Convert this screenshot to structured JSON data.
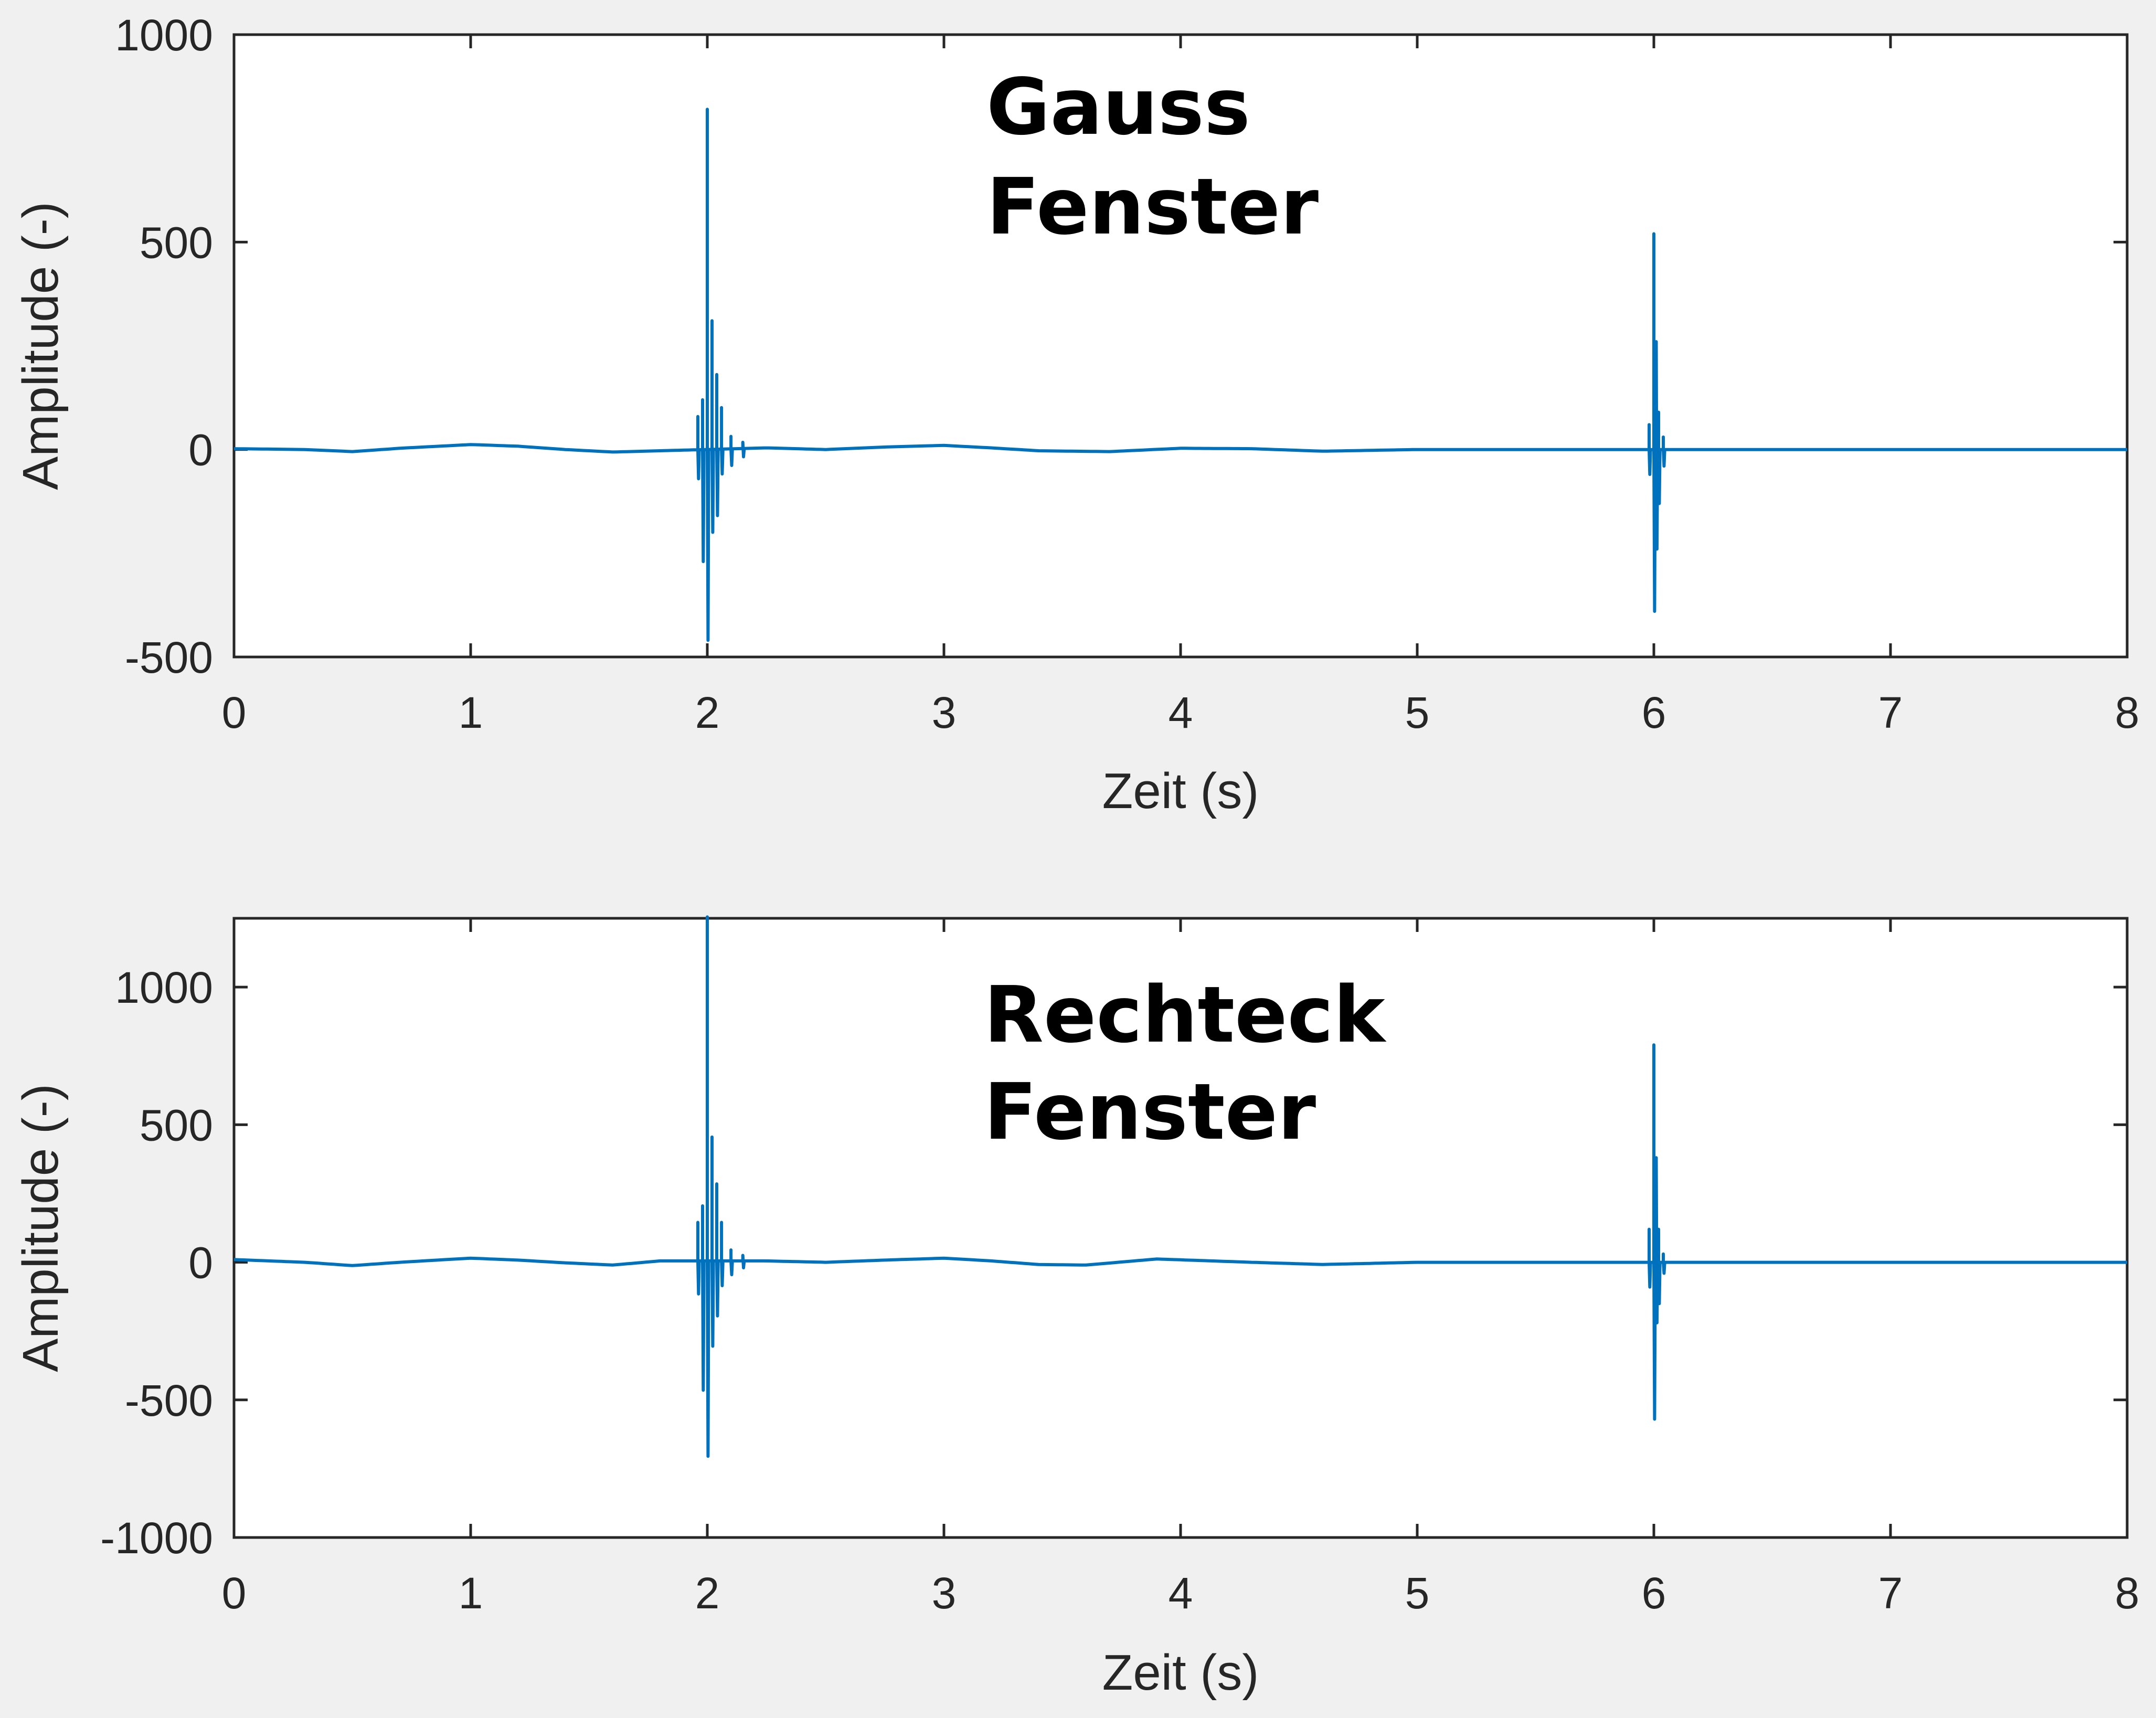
{
  "chart_data": [
    {
      "type": "line",
      "annotation": [
        "Gauss",
        "Fenster"
      ],
      "xlabel": "Zeit (s)",
      "ylabel": "Amplitude (-)",
      "xlim": [
        0,
        8
      ],
      "ylim": [
        -500,
        1000
      ],
      "xticks": [
        0,
        1,
        2,
        3,
        4,
        5,
        6,
        7,
        8
      ],
      "yticks": [
        -500,
        0,
        500,
        1000
      ],
      "color": "#0072bd",
      "baseline": [
        [
          0,
          2
        ],
        [
          0.3,
          0
        ],
        [
          0.5,
          -5
        ],
        [
          0.7,
          3
        ],
        [
          1.0,
          12
        ],
        [
          1.2,
          8
        ],
        [
          1.4,
          0
        ],
        [
          1.6,
          -6
        ],
        [
          1.8,
          -3
        ],
        [
          2.25,
          4
        ],
        [
          2.5,
          0
        ],
        [
          2.75,
          6
        ],
        [
          3.0,
          10
        ],
        [
          3.2,
          4
        ],
        [
          3.4,
          -3
        ],
        [
          3.7,
          -5
        ],
        [
          4.0,
          3
        ],
        [
          4.3,
          2
        ],
        [
          4.6,
          -4
        ],
        [
          5.0,
          0
        ],
        [
          5.5,
          0
        ],
        [
          5.98,
          0
        ],
        [
          6.1,
          0
        ],
        [
          7.0,
          0
        ],
        [
          8.0,
          0
        ]
      ],
      "bursts": [
        {
          "t": 1.96,
          "peak": 80,
          "trough": -70
        },
        {
          "t": 1.98,
          "peak": 120,
          "trough": -270
        },
        {
          "t": 2.0,
          "peak": 820,
          "trough": -460
        },
        {
          "t": 2.02,
          "peak": 310,
          "trough": -200
        },
        {
          "t": 2.04,
          "peak": 180,
          "trough": -160
        },
        {
          "t": 2.06,
          "peak": 100,
          "trough": -60
        },
        {
          "t": 2.1,
          "peak": 30,
          "trough": -40
        },
        {
          "t": 2.15,
          "peak": 15,
          "trough": -20
        },
        {
          "t": 5.98,
          "peak": 60,
          "trough": -60
        },
        {
          "t": 6.0,
          "peak": 520,
          "trough": -390
        },
        {
          "t": 6.01,
          "peak": 260,
          "trough": -240
        },
        {
          "t": 6.02,
          "peak": 90,
          "trough": -130
        },
        {
          "t": 6.04,
          "peak": 30,
          "trough": -40
        }
      ]
    },
    {
      "type": "line",
      "annotation": [
        "Rechteck",
        "Fenster"
      ],
      "xlabel": "Zeit (s)",
      "ylabel": "Amplitude (-)",
      "xlim": [
        0,
        8
      ],
      "ylim": [
        -1000,
        1250
      ],
      "xticks": [
        0,
        1,
        2,
        3,
        4,
        5,
        6,
        7,
        8
      ],
      "yticks": [
        -1000,
        -500,
        0,
        500,
        1000
      ],
      "color": "#0072bd",
      "baseline": [
        [
          0,
          10
        ],
        [
          0.3,
          0
        ],
        [
          0.5,
          -12
        ],
        [
          0.7,
          0
        ],
        [
          1.0,
          15
        ],
        [
          1.2,
          8
        ],
        [
          1.4,
          -2
        ],
        [
          1.6,
          -10
        ],
        [
          1.8,
          5
        ],
        [
          2.25,
          5
        ],
        [
          2.5,
          0
        ],
        [
          2.75,
          8
        ],
        [
          3.0,
          15
        ],
        [
          3.2,
          5
        ],
        [
          3.4,
          -8
        ],
        [
          3.6,
          -10
        ],
        [
          3.9,
          12
        ],
        [
          4.3,
          0
        ],
        [
          4.6,
          -8
        ],
        [
          5.0,
          0
        ],
        [
          5.5,
          0
        ],
        [
          5.98,
          0
        ],
        [
          6.1,
          0
        ],
        [
          7.0,
          0
        ],
        [
          8.0,
          0
        ]
      ],
      "bursts": [
        {
          "t": 1.96,
          "peak": 140,
          "trough": -120
        },
        {
          "t": 1.98,
          "peak": 200,
          "trough": -470
        },
        {
          "t": 2.0,
          "peak": 1250,
          "trough": -710
        },
        {
          "t": 2.02,
          "peak": 450,
          "trough": -310
        },
        {
          "t": 2.04,
          "peak": 280,
          "trough": -200
        },
        {
          "t": 2.06,
          "peak": 140,
          "trough": -90
        },
        {
          "t": 2.1,
          "peak": 40,
          "trough": -50
        },
        {
          "t": 2.15,
          "peak": 20,
          "trough": -25
        },
        {
          "t": 5.98,
          "peak": 120,
          "trough": -90
        },
        {
          "t": 6.0,
          "peak": 790,
          "trough": -570
        },
        {
          "t": 6.01,
          "peak": 380,
          "trough": -220
        },
        {
          "t": 6.02,
          "peak": 120,
          "trough": -150
        },
        {
          "t": 6.04,
          "peak": 30,
          "trough": -40
        }
      ]
    }
  ]
}
